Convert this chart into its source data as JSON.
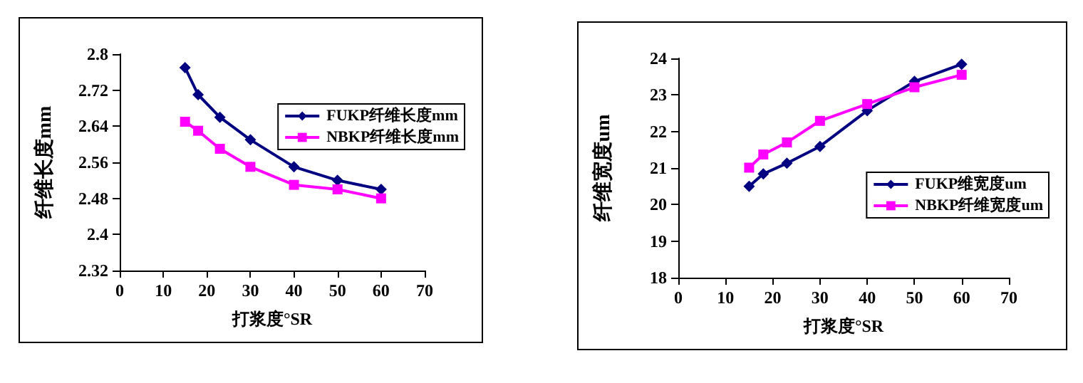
{
  "chart_data": [
    {
      "type": "line",
      "xlabel": "打浆度°SR",
      "ylabel": "纤维长度mm",
      "xlim": [
        0,
        70
      ],
      "xticks": [
        0,
        10,
        20,
        30,
        40,
        50,
        60,
        70
      ],
      "ylim": [
        2.32,
        2.8
      ],
      "yticks": [
        2.32,
        2.4,
        2.48,
        2.56,
        2.64,
        2.72,
        2.8
      ],
      "grid": false,
      "legend": "right",
      "x": [
        15,
        18,
        23,
        30,
        40,
        50,
        60
      ],
      "series": [
        {
          "name": "FUKP纤维长度mm",
          "color": "#000080",
          "marker": "diamond",
          "values": [
            2.77,
            2.71,
            2.66,
            2.61,
            2.55,
            2.52,
            2.5
          ]
        },
        {
          "name": "NBKP纤维长度mm",
          "color": "#ff00ff",
          "marker": "square",
          "values": [
            2.65,
            2.63,
            2.59,
            2.55,
            2.51,
            2.5,
            2.48
          ]
        }
      ]
    },
    {
      "type": "line",
      "xlabel": "打浆度°SR",
      "ylabel": "纤维宽度um",
      "xlim": [
        0,
        70
      ],
      "xticks": [
        0,
        10,
        20,
        30,
        40,
        50,
        60,
        70
      ],
      "ylim": [
        18,
        24
      ],
      "yticks": [
        18,
        19,
        20,
        21,
        22,
        23,
        24
      ],
      "grid": false,
      "legend": "bottom right",
      "x": [
        15,
        18,
        23,
        30,
        40,
        50,
        60
      ],
      "series": [
        {
          "name": "FUKP维宽度um",
          "color": "#000080",
          "marker": "diamond",
          "values": [
            20.5,
            20.84,
            21.13,
            21.59,
            22.57,
            23.37,
            23.84
          ]
        },
        {
          "name": "NBKP纤维宽度um",
          "color": "#ff00ff",
          "marker": "square",
          "values": [
            21.01,
            21.37,
            21.7,
            22.29,
            22.75,
            23.21,
            23.55
          ]
        }
      ]
    }
  ]
}
